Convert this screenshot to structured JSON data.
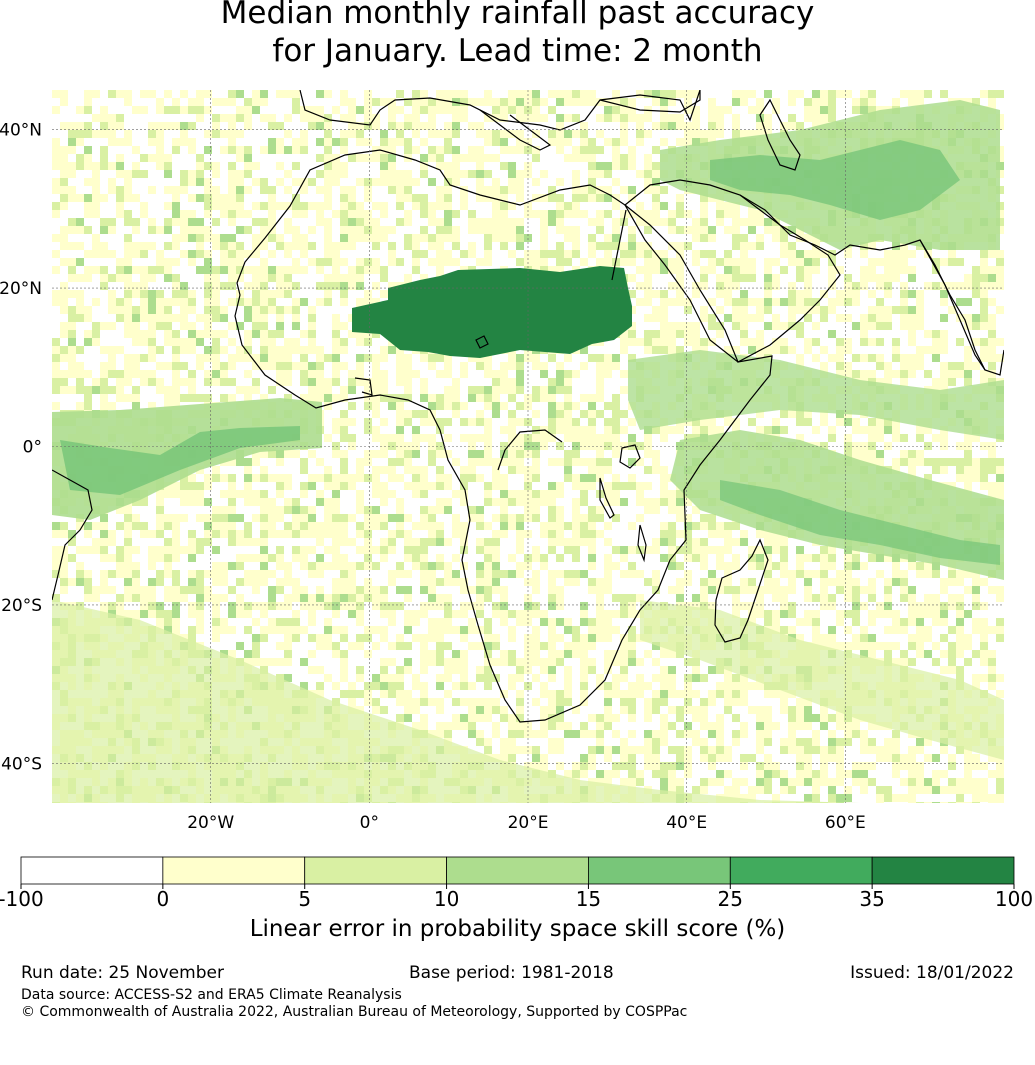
{
  "title_line1": "Median monthly rainfall past accuracy",
  "title_line2": "for January. Lead time: 2 month",
  "map": {
    "lon_range": [
      -40,
      80
    ],
    "lat_range": [
      -45,
      45
    ],
    "lat_ticks": [
      {
        "value": 40,
        "label": "40°N"
      },
      {
        "value": 20,
        "label": "20°N"
      },
      {
        "value": 0,
        "label": "0°"
      },
      {
        "value": -20,
        "label": "20°S"
      },
      {
        "value": -40,
        "label": "40°S"
      }
    ],
    "lon_ticks": [
      {
        "value": -20,
        "label": "20°W"
      },
      {
        "value": 0,
        "label": "0°"
      },
      {
        "value": 20,
        "label": "20°E"
      },
      {
        "value": 40,
        "label": "40°E"
      },
      {
        "value": 60,
        "label": "60°E"
      }
    ]
  },
  "legend": {
    "ticks": [
      "-100",
      "0",
      "5",
      "10",
      "15",
      "25",
      "35",
      "100"
    ],
    "colors": [
      "#ffffff",
      "#ffffcc",
      "#d9f0a3",
      "#addd8e",
      "#78c679",
      "#41ab5d",
      "#238443"
    ],
    "label": "Linear error in probability space skill score (%)"
  },
  "footer": {
    "run_date": "Run date: 25 November",
    "base_period": "Base period: 1981-2018",
    "issued": "Issued: 18/01/2022",
    "data_source": "Data source: ACCESS-S2 and ERA5 Climate Reanalysis",
    "copyright": "© Commonwealth of Australia 2022, Australian Bureau of Meteorology, Supported by COSPPac"
  }
}
